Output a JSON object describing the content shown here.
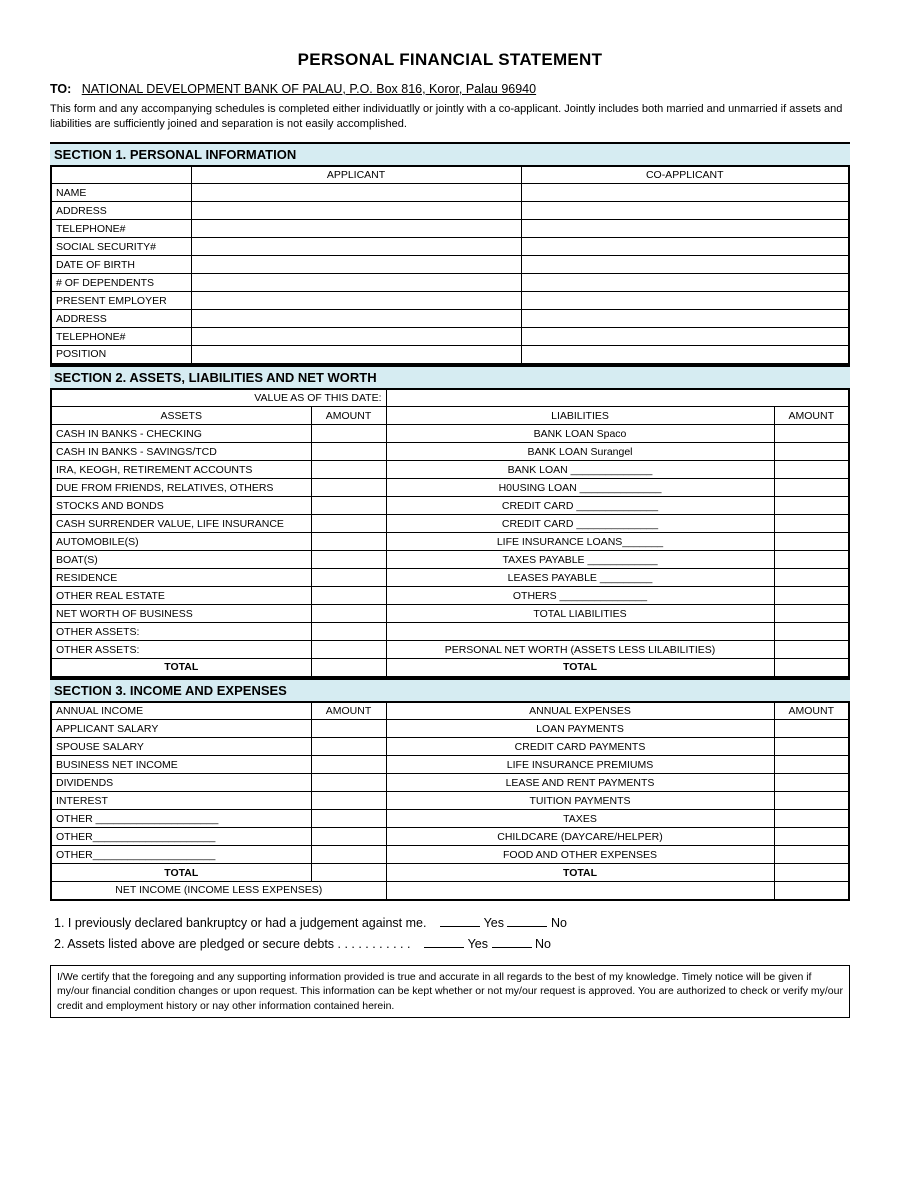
{
  "title": "PERSONAL FINANCIAL STATEMENT",
  "to": {
    "label": "TO:",
    "addressee": "NATIONAL DEVELOPMENT BANK OF PALAU, P.O. Box 816, Koror, Palau 96940"
  },
  "intro": "This form and any accompanying schedules is completed either individuatlly or jointly with a co-applicant.  Jointly includes both married and unmarried if assets and liabilities are sufficiently joined and separation is not easily accomplished.",
  "section1": {
    "heading": "SECTION 1.  PERSONAL INFORMATION",
    "col_applicant": "APPLICANT",
    "col_coapplicant": "CO-APPLICANT",
    "rows": [
      "NAME",
      "ADDRESS",
      "TELEPHONE#",
      "SOCIAL SECURITY#",
      "DATE OF BIRTH",
      "# OF DEPENDENTS",
      "PRESENT EMPLOYER",
      "ADDRESS",
      "TELEPHONE#",
      "POSITION"
    ]
  },
  "section2": {
    "heading": "SECTION 2.  ASSETS, LIABILITIES AND NET WORTH",
    "date_label": "VALUE AS OF THIS DATE:",
    "assets_hdr": "ASSETS",
    "liab_hdr": "LIABILITIES",
    "amount_hdr": "AMOUNT",
    "assets": [
      "CASH IN BANKS - CHECKING",
      "CASH IN BANKS - SAVINGS/TCD",
      "IRA, KEOGH, RETIREMENT ACCOUNTS",
      "DUE FROM FRIENDS, RELATIVES, OTHERS",
      "STOCKS AND BONDS",
      "CASH SURRENDER VALUE, LIFE INSURANCE",
      "AUTOMOBILE(S)",
      "BOAT(S)",
      "RESIDENCE",
      "OTHER REAL ESTATE",
      "NET WORTH OF BUSINESS",
      "OTHER ASSETS:",
      "OTHER ASSETS:"
    ],
    "liabilities": [
      "BANK LOAN  Spaco",
      "BANK LOAN  Surangel",
      "BANK LOAN ______________",
      "H0USING LOAN ______________",
      "CREDIT CARD ______________",
      "CREDIT CARD ______________",
      "LIFE INSURANCE LOANS_______",
      "TAXES PAYABLE ____________",
      "LEASES PAYABLE _________",
      "OTHERS _______________",
      "TOTAL LIABILITIES",
      "",
      "PERSONAL NET WORTH (ASSETS LESS LILABILITIES)"
    ],
    "total_left": "TOTAL",
    "total_right": "TOTAL"
  },
  "section3": {
    "heading": "SECTION 3.  INCOME AND EXPENSES",
    "income_hdr": "ANNUAL INCOME",
    "expense_hdr": "ANNUAL EXPENSES",
    "amount_hdr": "AMOUNT",
    "income": [
      "APPLICANT SALARY",
      "SPOUSE SALARY",
      "BUSINESS NET INCOME",
      "DIVIDENDS",
      "INTEREST",
      "OTHER _____________________",
      "OTHER_____________________",
      "OTHER_____________________"
    ],
    "expenses": [
      "LOAN PAYMENTS",
      "CREDIT CARD PAYMENTS",
      "LIFE INSURANCE PREMIUMS",
      "LEASE AND RENT PAYMENTS",
      "TUITION PAYMENTS",
      "TAXES",
      "CHILDCARE (DAYCARE/HELPER)",
      "FOOD AND OTHER EXPENSES"
    ],
    "total_left": "TOTAL",
    "total_right": "TOTAL",
    "net_income": "NET INCOME (INCOME LESS EXPENSES)"
  },
  "questions": {
    "q1": "1.  I previously declared bankruptcy or had a judgement against me.",
    "q2": "2.  Assets listed above are pledged or secure debts . . . . . . . . . . .",
    "yes": "Yes",
    "no": "No"
  },
  "cert": "I/We certify that the foregoing and any supporting information provided is true and accurate in all regards to the best of my knowledge.  Timely notice will be given if my/our financial condition changes or upon request.  This information can be kept whether or not my/our request is approved.  You are authorized to check or verify my/our credit and employment history or nay other information contained herein.",
  "colors": {
    "section_bg": "#d6ecf2",
    "border": "#000000",
    "text": "#000000",
    "page_bg": "#ffffff"
  }
}
